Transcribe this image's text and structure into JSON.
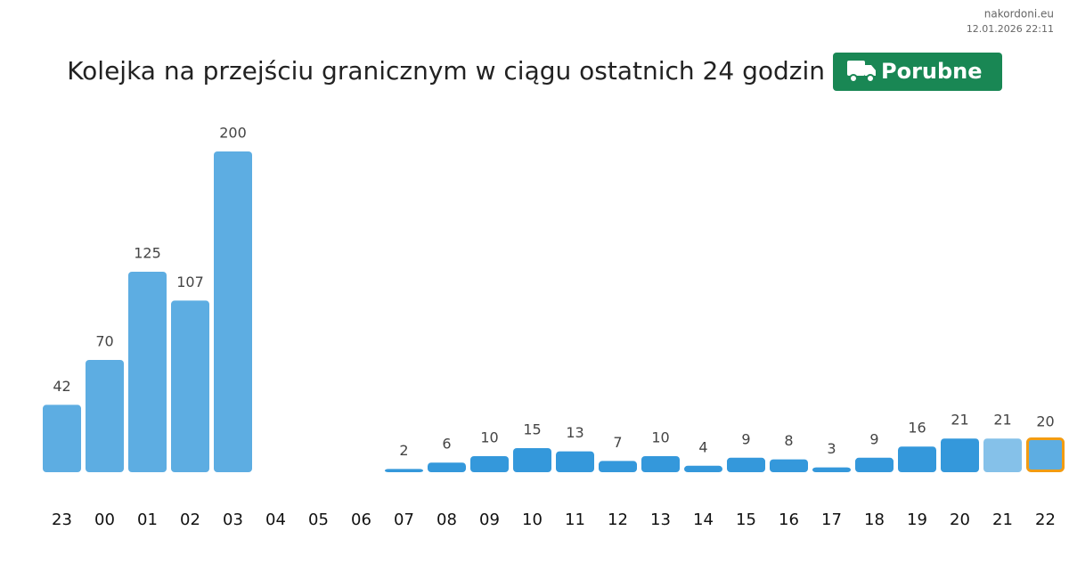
{
  "site": "nakordoni.eu",
  "timestamp": "12.01.2026 22:11",
  "chart_data": {
    "type": "bar",
    "title": "Kolejka na przejściu granicznym w ciągu ostatnich 24 godzin",
    "badge": "Porubne",
    "badge_color": "#198754",
    "categories": [
      "23",
      "00",
      "01",
      "02",
      "03",
      "04",
      "05",
      "06",
      "07",
      "08",
      "09",
      "10",
      "11",
      "12",
      "13",
      "14",
      "15",
      "16",
      "17",
      "18",
      "19",
      "20",
      "21",
      "22"
    ],
    "values": [
      42,
      70,
      125,
      107,
      200,
      null,
      null,
      null,
      2,
      6,
      10,
      15,
      13,
      7,
      10,
      4,
      9,
      8,
      3,
      9,
      16,
      21,
      21,
      20
    ],
    "colors": [
      "#5dade2",
      "#5dade2",
      "#5dade2",
      "#5dade2",
      "#5dade2",
      null,
      null,
      null,
      "#3498db",
      "#3498db",
      "#3498db",
      "#3498db",
      "#3498db",
      "#3498db",
      "#3498db",
      "#3498db",
      "#3498db",
      "#3498db",
      "#3498db",
      "#3498db",
      "#3498db",
      "#3498db",
      "#85c1e9",
      "#5dade2"
    ],
    "edge_colors": [
      null,
      null,
      null,
      null,
      null,
      null,
      null,
      null,
      null,
      null,
      null,
      null,
      null,
      null,
      null,
      null,
      null,
      null,
      null,
      null,
      null,
      null,
      null,
      "#f39c12"
    ]
  }
}
